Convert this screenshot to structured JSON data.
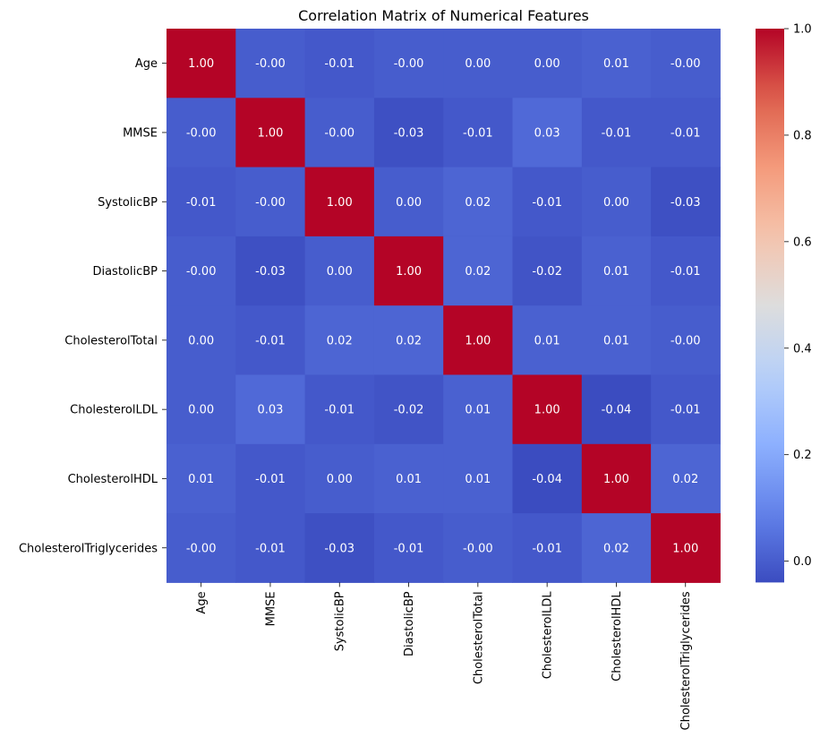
{
  "chart_data": {
    "type": "heatmap",
    "title": "Correlation Matrix of Numerical Features",
    "row_labels": [
      "Age",
      "MMSE",
      "SystolicBP",
      "DiastolicBP",
      "CholesterolTotal",
      "CholesterolLDL",
      "CholesterolHDL",
      "CholesterolTriglycerides"
    ],
    "col_labels": [
      "Age",
      "MMSE",
      "SystolicBP",
      "DiastolicBP",
      "CholesterolTotal",
      "CholesterolLDL",
      "CholesterolHDL",
      "CholesterolTriglycerides"
    ],
    "values": [
      [
        1.0,
        -0.0,
        -0.01,
        -0.0,
        0.0,
        0.0,
        0.01,
        -0.0
      ],
      [
        -0.0,
        1.0,
        -0.0,
        -0.03,
        -0.01,
        0.03,
        -0.01,
        -0.01
      ],
      [
        -0.01,
        -0.0,
        1.0,
        0.0,
        0.02,
        -0.01,
        0.0,
        -0.03
      ],
      [
        -0.0,
        -0.03,
        0.0,
        1.0,
        0.02,
        -0.02,
        0.01,
        -0.01
      ],
      [
        0.0,
        -0.01,
        0.02,
        0.02,
        1.0,
        0.01,
        0.01,
        -0.0
      ],
      [
        0.0,
        0.03,
        -0.01,
        -0.02,
        0.01,
        1.0,
        -0.04,
        -0.01
      ],
      [
        0.01,
        -0.01,
        0.0,
        0.01,
        0.01,
        -0.04,
        1.0,
        0.02
      ],
      [
        -0.0,
        -0.01,
        -0.03,
        -0.01,
        -0.0,
        -0.01,
        0.02,
        1.0
      ]
    ],
    "annotations": [
      [
        "1.00",
        "-0.00",
        "-0.01",
        "-0.00",
        "0.00",
        "0.00",
        "0.01",
        "-0.00"
      ],
      [
        "-0.00",
        "1.00",
        "-0.00",
        "-0.03",
        "-0.01",
        "0.03",
        "-0.01",
        "-0.01"
      ],
      [
        "-0.01",
        "-0.00",
        "1.00",
        "0.00",
        "0.02",
        "-0.01",
        "0.00",
        "-0.03"
      ],
      [
        "-0.00",
        "-0.03",
        "0.00",
        "1.00",
        "0.02",
        "-0.02",
        "0.01",
        "-0.01"
      ],
      [
        "0.00",
        "-0.01",
        "0.02",
        "0.02",
        "1.00",
        "0.01",
        "0.01",
        "-0.00"
      ],
      [
        "0.00",
        "0.03",
        "-0.01",
        "-0.02",
        "0.01",
        "1.00",
        "-0.04",
        "-0.01"
      ],
      [
        "0.01",
        "-0.01",
        "0.00",
        "0.01",
        "0.01",
        "-0.04",
        "1.00",
        "0.02"
      ],
      [
        "-0.00",
        "-0.01",
        "-0.03",
        "-0.01",
        "-0.00",
        "-0.01",
        "0.02",
        "1.00"
      ]
    ],
    "colormap": "coolwarm",
    "colorbar": {
      "range": [
        -0.04,
        1.0
      ],
      "ticks": [
        0.0,
        0.2,
        0.4,
        0.6,
        0.8,
        1.0
      ],
      "tick_labels": [
        "0.0",
        "0.2",
        "0.4",
        "0.6",
        "0.8",
        "1.0"
      ]
    }
  }
}
